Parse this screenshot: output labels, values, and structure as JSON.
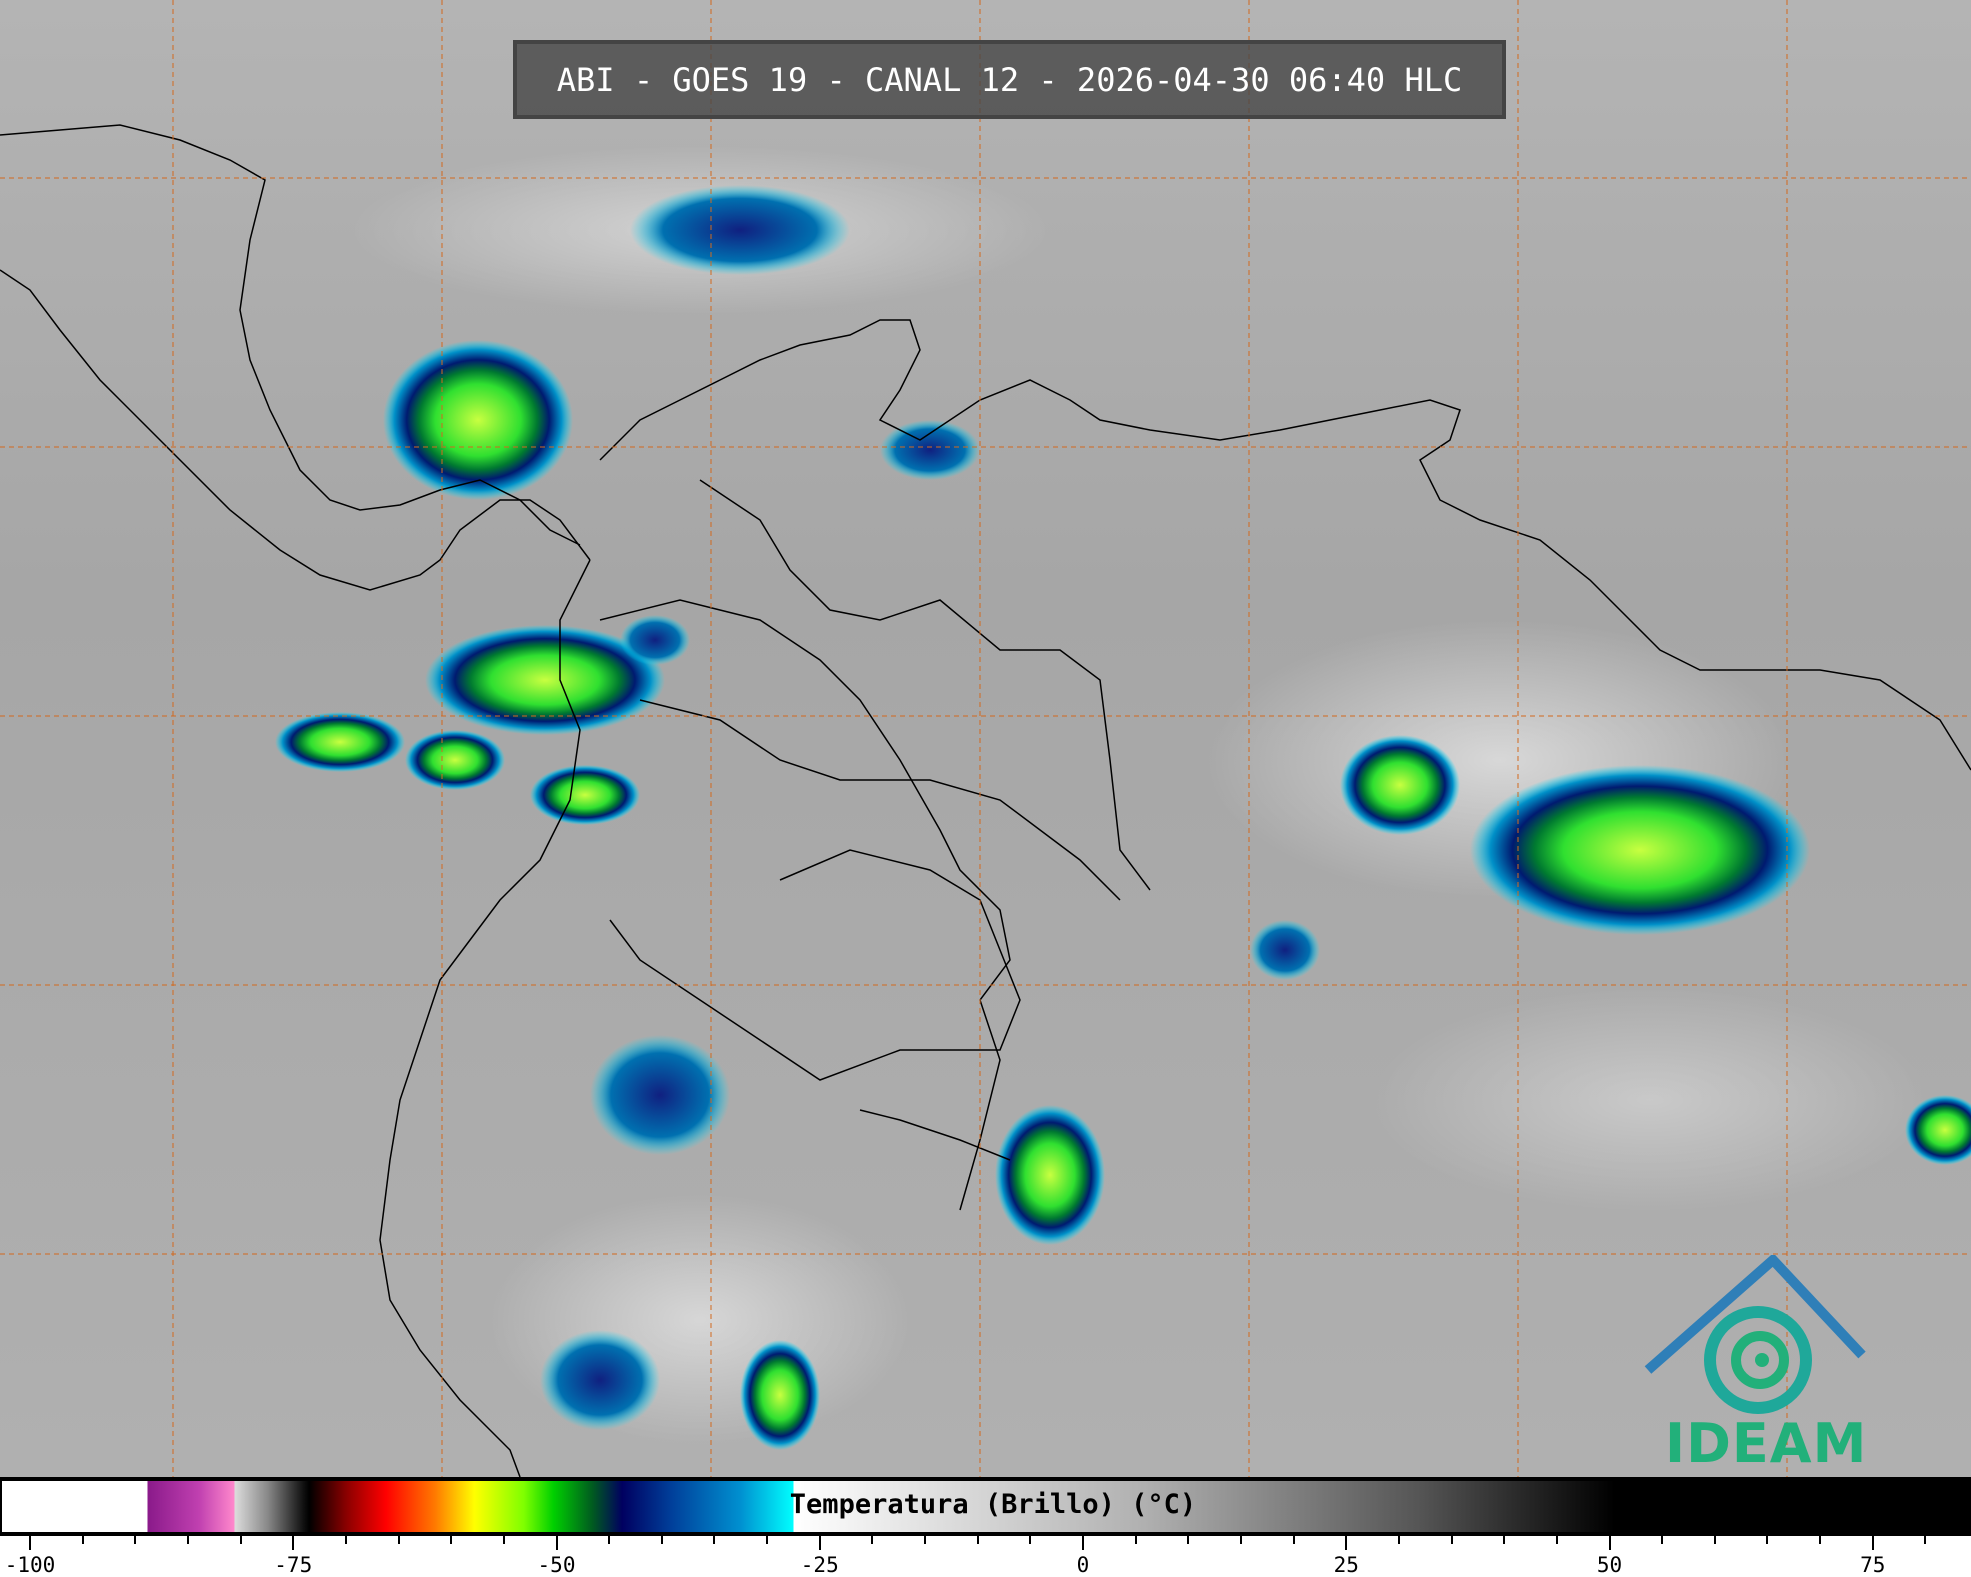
{
  "title": "ABI - GOES 19 - CANAL 12 - 2026-04-30 06:40 HLC",
  "colorbar": {
    "label": "Temperatura (Brillo) (°C)",
    "range": [
      -100,
      85
    ],
    "tick_labels": [
      "-100",
      "-75",
      "-50",
      "-25",
      "0",
      "25",
      "50",
      "75"
    ],
    "tick_values": [
      -100,
      -75,
      -50,
      -25,
      0,
      25,
      50,
      75
    ],
    "minor_step": 5
  },
  "logo": {
    "text": "IDEAM",
    "color": "#22b07a"
  },
  "colors": {
    "gridline": "#d2691e",
    "coastline": "#000000",
    "background": "#a9a9a9"
  }
}
